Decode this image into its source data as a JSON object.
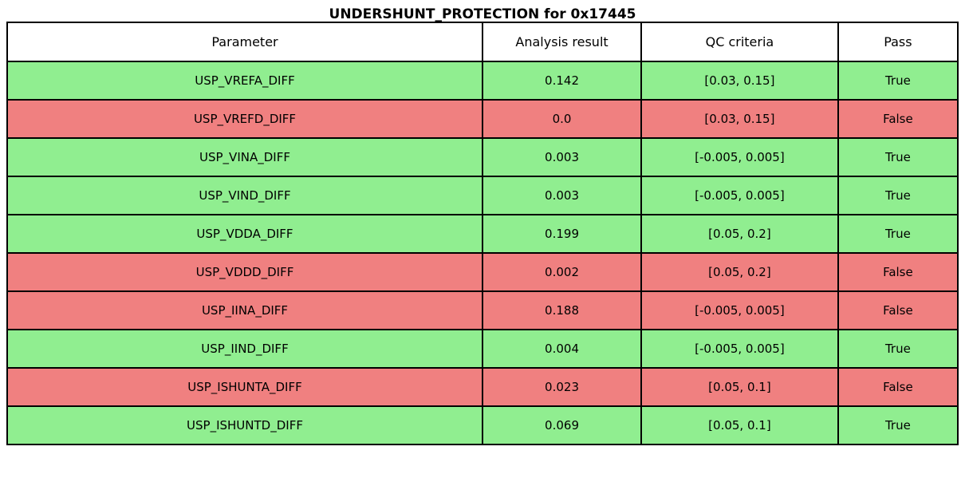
{
  "chart_data": {
    "type": "table",
    "title": "UNDERSHUNT_PROTECTION for 0x17445",
    "columns": [
      "Parameter",
      "Analysis result",
      "QC criteria",
      "Pass"
    ],
    "rows": [
      {
        "parameter": "USP_VREFA_DIFF",
        "analysis_result": "0.142",
        "qc_criteria": "[0.03, 0.15]",
        "pass": "True"
      },
      {
        "parameter": "USP_VREFD_DIFF",
        "analysis_result": "0.0",
        "qc_criteria": "[0.03, 0.15]",
        "pass": "False"
      },
      {
        "parameter": "USP_VINA_DIFF",
        "analysis_result": "0.003",
        "qc_criteria": "[-0.005, 0.005]",
        "pass": "True"
      },
      {
        "parameter": "USP_VIND_DIFF",
        "analysis_result": "0.003",
        "qc_criteria": "[-0.005, 0.005]",
        "pass": "True"
      },
      {
        "parameter": "USP_VDDA_DIFF",
        "analysis_result": "0.199",
        "qc_criteria": "[0.05, 0.2]",
        "pass": "True"
      },
      {
        "parameter": "USP_VDDD_DIFF",
        "analysis_result": "0.002",
        "qc_criteria": "[0.05, 0.2]",
        "pass": "False"
      },
      {
        "parameter": "USP_IINA_DIFF",
        "analysis_result": "0.188",
        "qc_criteria": "[-0.005, 0.005]",
        "pass": "False"
      },
      {
        "parameter": "USP_IIND_DIFF",
        "analysis_result": "0.004",
        "qc_criteria": "[-0.005, 0.005]",
        "pass": "True"
      },
      {
        "parameter": "USP_ISHUNTA_DIFF",
        "analysis_result": "0.023",
        "qc_criteria": "[0.05, 0.1]",
        "pass": "False"
      },
      {
        "parameter": "USP_ISHUNTD_DIFF",
        "analysis_result": "0.069",
        "qc_criteria": "[0.05, 0.1]",
        "pass": "True"
      }
    ],
    "colors": {
      "pass_true_bg": "#90EE90",
      "pass_false_bg": "#F08080",
      "header_bg": "#FFFFFF",
      "border": "#000000",
      "text": "#000000"
    },
    "layout": {
      "legend": "none",
      "title_position": "top-center",
      "cell_text_align": "center"
    }
  }
}
